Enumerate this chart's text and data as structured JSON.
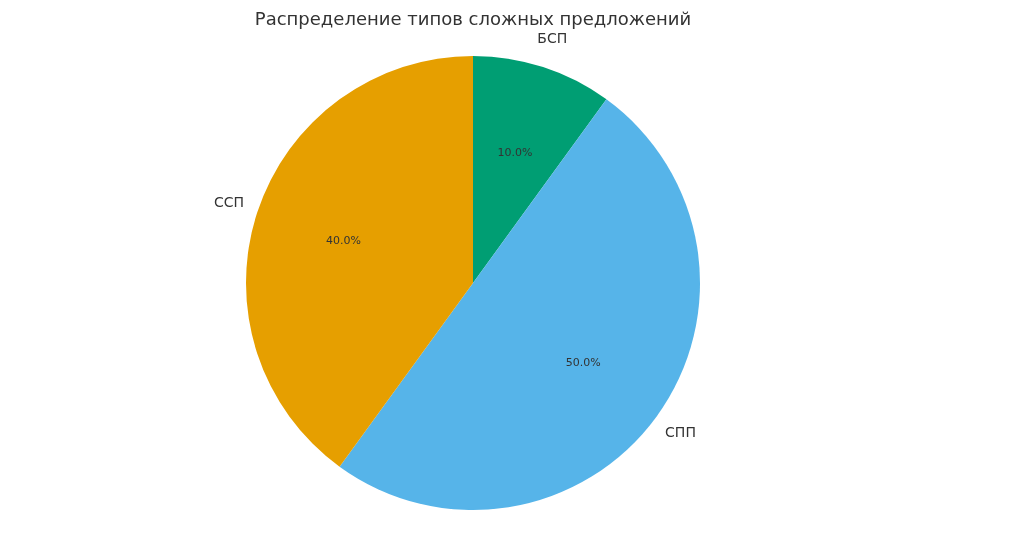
{
  "chart_data": {
    "type": "pie",
    "title": "Распределение типов сложных предложений",
    "categories": [
      "БСП",
      "СПП",
      "ССП"
    ],
    "values": [
      10,
      50,
      40
    ],
    "colors": [
      "#009e73",
      "#56b4e9",
      "#e69f00"
    ],
    "value_labels": [
      "10.0%",
      "50.0%",
      "40.0%"
    ],
    "legend": false
  }
}
